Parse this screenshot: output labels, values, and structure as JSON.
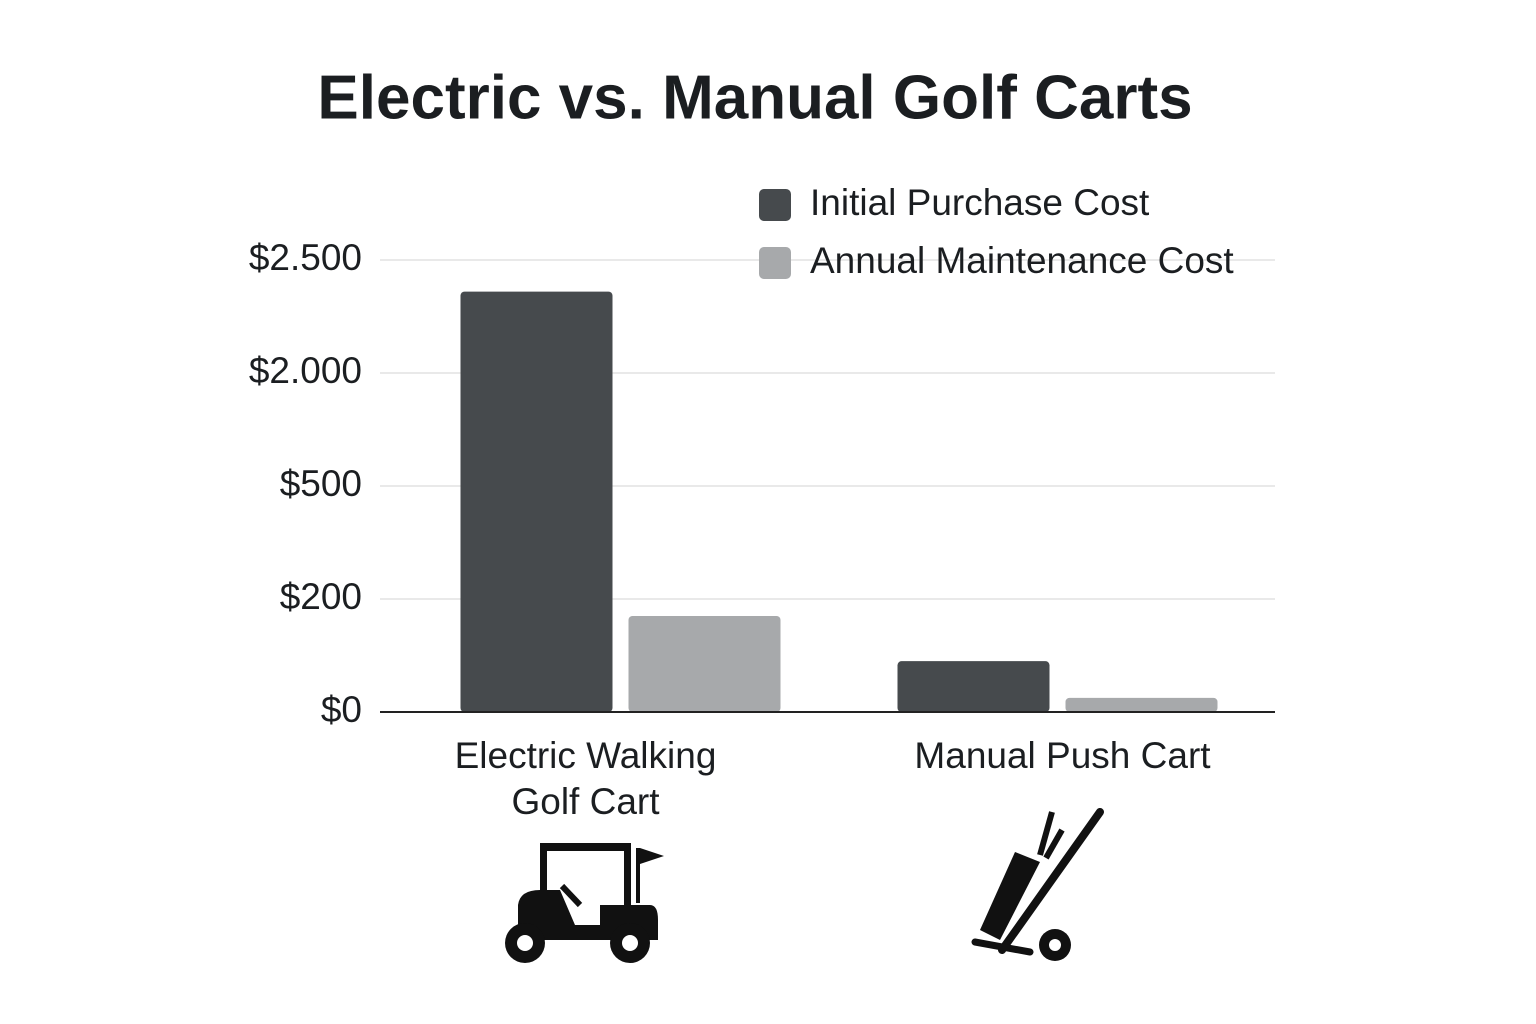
{
  "chart_data": {
    "type": "bar",
    "title": "Electric vs. Manual Golf Carts",
    "categories": [
      "Electric Walking Golf Cart",
      "Manual Push Cart"
    ],
    "series": [
      {
        "name": "Initial Purchase Cost",
        "color": "#464a4d",
        "values": [
          2360,
          90
        ]
      },
      {
        "name": "Annual Maintenance Cost",
        "color": "#a7a9ab",
        "values": [
          170,
          25
        ]
      }
    ],
    "ylim": [
      0,
      2500
    ],
    "yticks": [
      {
        "value": 0,
        "label": "$0"
      },
      {
        "value": 200,
        "label": "$200"
      },
      {
        "value": 500,
        "label": "$500"
      },
      {
        "value": 2000,
        "label": "$2.000"
      },
      {
        "value": 2500,
        "label": "$2.500"
      }
    ],
    "grid": true,
    "legend": "top-right"
  }
}
